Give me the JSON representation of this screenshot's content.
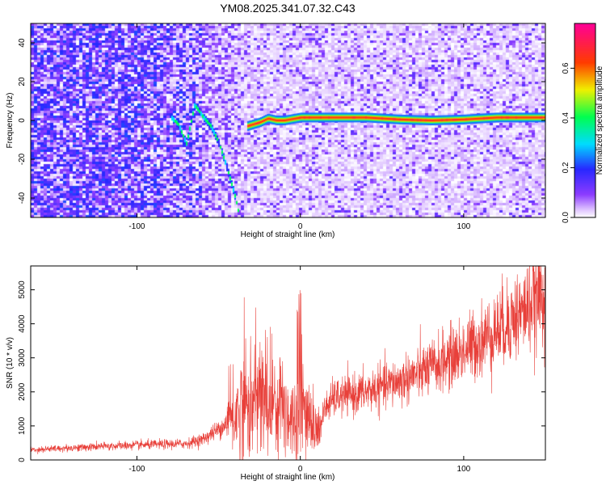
{
  "title": "YM08.2025.341.07.32.C43",
  "colors": {
    "snr_line": "#e8403a",
    "track_core": "#e83a1a",
    "background": "#ffffff"
  },
  "chart_data": [
    {
      "type": "heatmap",
      "xlabel": "Height of straight line (km)",
      "ylabel": "Frequency (Hz)",
      "xlim": [
        -165,
        150
      ],
      "ylim": [
        -50,
        50
      ],
      "xticks": [
        "-100",
        "0",
        "100"
      ],
      "yticks": [
        "-40",
        "-20",
        "0",
        "20",
        "40"
      ],
      "colorbar": {
        "label": "Normalized spectral amplitude",
        "range": [
          0.0,
          0.78
        ],
        "ticks": [
          "0.0",
          "0.2",
          "0.4",
          "0.6"
        ],
        "colormap": "rainbow (purple-blue-cyan-green-yellow-red-magenta)"
      },
      "track": [
        [
          -80,
          2
        ],
        [
          -75,
          -2
        ],
        [
          -70,
          -12
        ],
        [
          -65,
          8
        ],
        [
          -60,
          2
        ],
        [
          -55,
          -3
        ],
        [
          -50,
          -12
        ],
        [
          -45,
          -25
        ],
        [
          -40,
          -40
        ],
        [
          -38,
          -48
        ],
        [
          -33,
          -3
        ],
        [
          -25,
          -1
        ],
        [
          -20,
          1
        ],
        [
          -15,
          0
        ],
        [
          -10,
          0
        ],
        [
          0,
          1.5
        ],
        [
          20,
          1.5
        ],
        [
          40,
          1.5
        ],
        [
          60,
          0.5
        ],
        [
          80,
          0
        ],
        [
          100,
          0.5
        ],
        [
          120,
          1.5
        ],
        [
          150,
          1.5
        ]
      ],
      "grid": false
    },
    {
      "type": "line",
      "xlabel": "Height of straight line (km)",
      "ylabel": "SNR (10 * v/v)",
      "xlim": [
        -165,
        150
      ],
      "ylim": [
        0,
        5700
      ],
      "xticks": [
        "-100",
        "0",
        "100"
      ],
      "yticks": [
        "0",
        "1000",
        "2000",
        "3000",
        "4000",
        "5000"
      ],
      "envelope": {
        "x": [
          -165,
          -150,
          -120,
          -90,
          -70,
          -60,
          -50,
          -40,
          -35,
          -30,
          -25,
          -20,
          -15,
          -10,
          -5,
          0,
          5,
          10,
          15,
          20,
          40,
          60,
          80,
          100,
          120,
          140,
          150
        ],
        "y_mid": [
          300,
          330,
          400,
          450,
          480,
          600,
          900,
          1300,
          1700,
          1500,
          1900,
          1600,
          1800,
          1600,
          1200,
          1500,
          1400,
          600,
          1500,
          1800,
          2000,
          2300,
          2700,
          3200,
          3800,
          4500,
          5000
        ]
      },
      "grid": false
    }
  ]
}
